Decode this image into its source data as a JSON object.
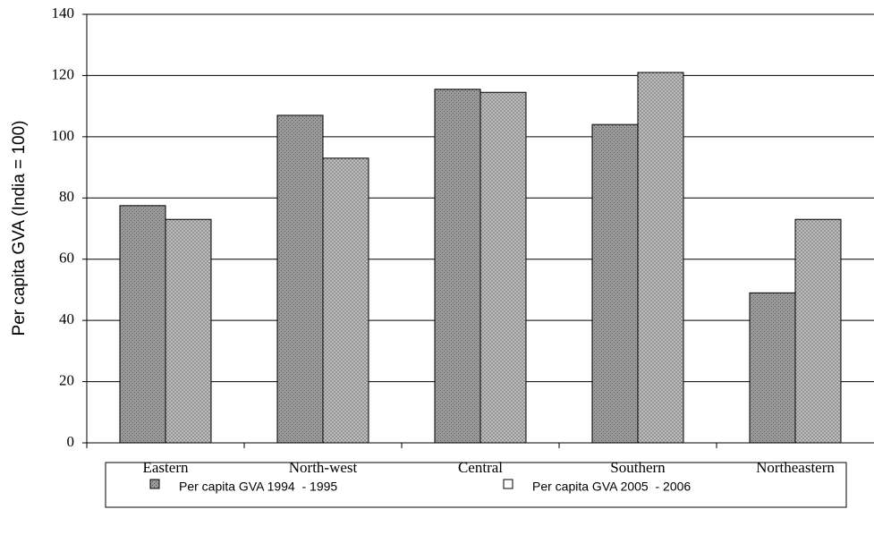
{
  "chart_data": {
    "type": "bar",
    "y_label": "Per capita GVA (India = 100)",
    "categories": [
      "Eastern",
      "North-west",
      "Central",
      "Southern",
      "Northeastern"
    ],
    "series": [
      {
        "name": "Per capita GVA 1994  - 1995",
        "color": "#9a9a9a",
        "values": [
          77.5,
          107,
          115.5,
          104,
          49
        ]
      },
      {
        "name": "Per capita GVA 2005  - 2006",
        "color": "#c4c4c4",
        "values": [
          73,
          93,
          114.5,
          121,
          73
        ]
      }
    ],
    "ylim": [
      0,
      140
    ],
    "yticks": [
      0,
      20,
      40,
      60,
      80,
      100,
      120,
      140
    ],
    "grid": true
  }
}
